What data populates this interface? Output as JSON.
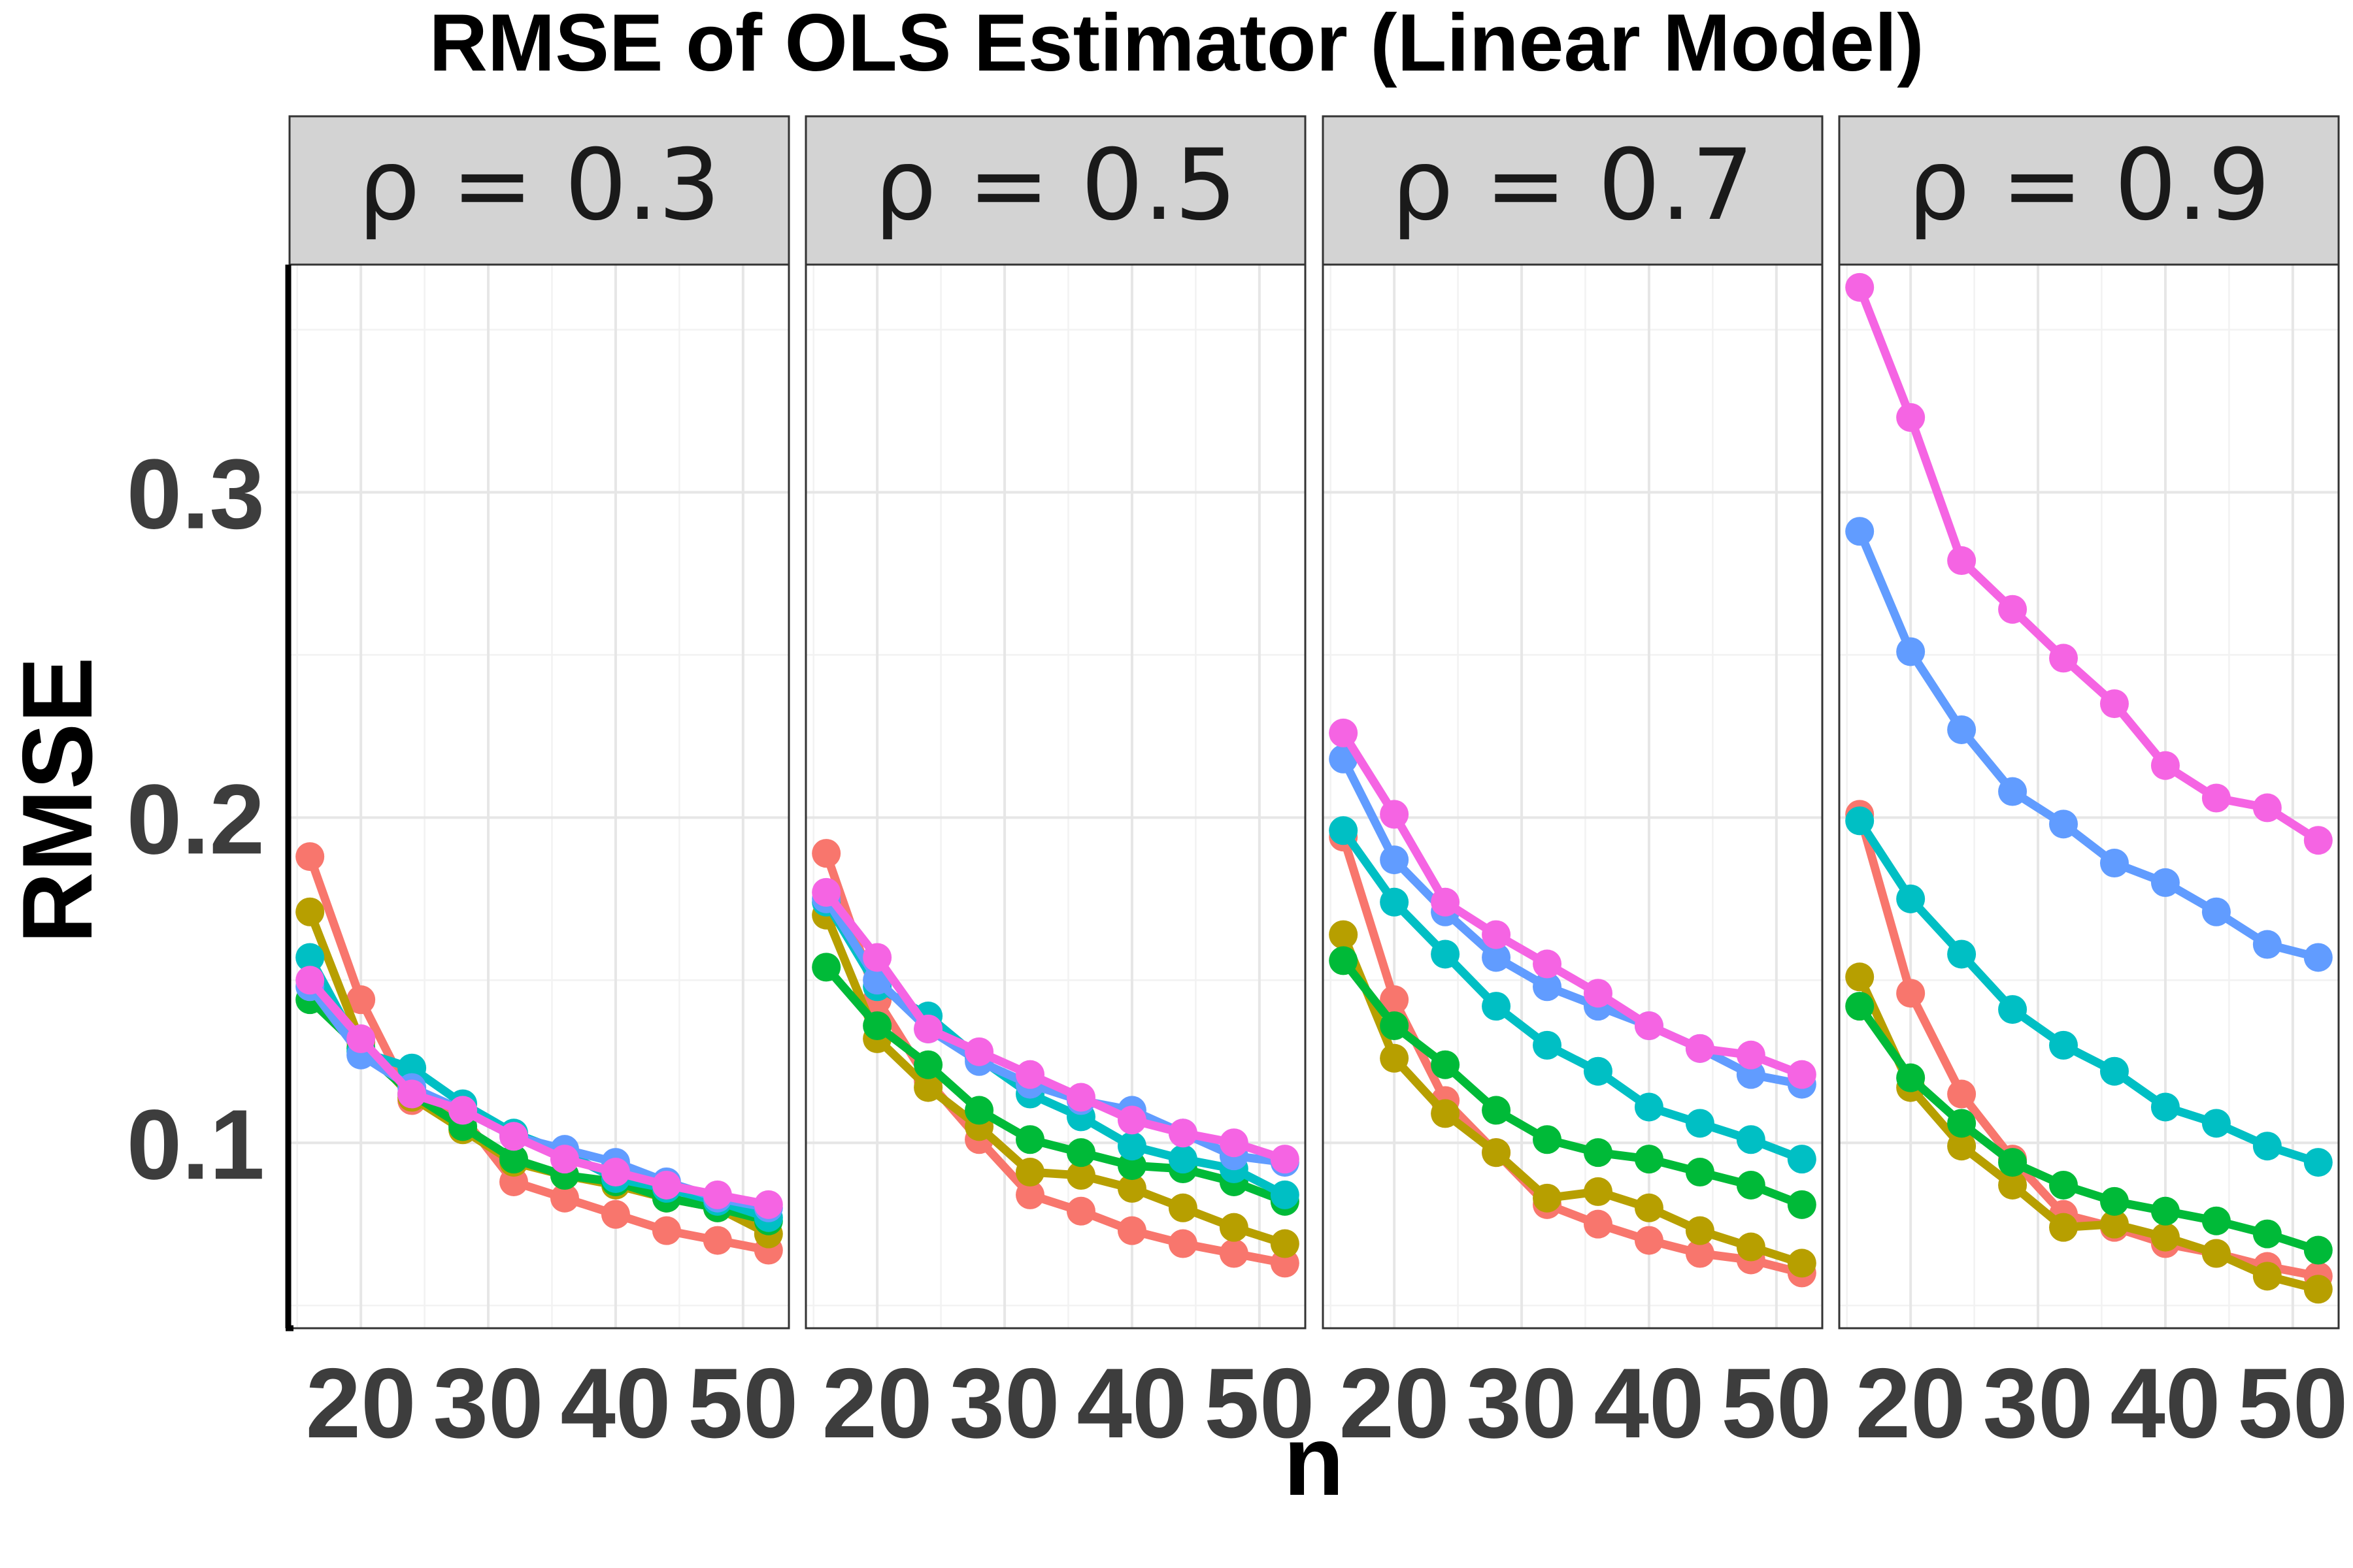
{
  "chart_data": {
    "type": "line",
    "title": "RMSE of OLS Estimator (Linear Model)",
    "xlabel": "n",
    "ylabel": "RMSE",
    "xlim": [
      14.4,
      53.6
    ],
    "ylim": [
      0.043,
      0.37
    ],
    "x_ticks": [
      20,
      30,
      40,
      50
    ],
    "y_ticks": [
      0.1,
      0.2,
      0.3
    ],
    "y_tick_labels": [
      "0.1",
      "0.2",
      "0.3"
    ],
    "x": [
      16,
      20,
      24,
      28,
      32,
      36,
      40,
      44,
      48,
      52
    ],
    "facet_prefix": "ρ = ",
    "facets": [
      {
        "label": "0.3",
        "series": [
          {
            "color": "#F8766D",
            "values": [
              0.188,
              0.144,
              0.113,
              0.108,
              0.088,
              0.083,
              0.078,
              0.073,
              0.07,
              0.067
            ]
          },
          {
            "color": "#B79F00",
            "values": [
              0.171,
              0.131,
              0.114,
              0.104,
              0.094,
              0.09,
              0.087,
              0.083,
              0.08,
              0.072
            ]
          },
          {
            "color": "#00BA38",
            "values": [
              0.144,
              0.129,
              0.115,
              0.105,
              0.095,
              0.09,
              0.088,
              0.083,
              0.08,
              0.076
            ]
          },
          {
            "color": "#00BFC4",
            "values": [
              0.157,
              0.128,
              0.123,
              0.112,
              0.103,
              0.097,
              0.089,
              0.086,
              0.082,
              0.077
            ]
          },
          {
            "color": "#619CFF",
            "values": [
              0.148,
              0.127,
              0.117,
              0.11,
              0.102,
              0.098,
              0.094,
              0.088,
              0.083,
              0.08
            ]
          },
          {
            "color": "#F564E3",
            "values": [
              0.15,
              0.132,
              0.115,
              0.11,
              0.102,
              0.095,
              0.091,
              0.087,
              0.084,
              0.081
            ]
          }
        ]
      },
      {
        "label": "0.5",
        "series": [
          {
            "color": "#F8766D",
            "values": [
              0.189,
              0.144,
              0.119,
              0.101,
              0.084,
              0.079,
              0.073,
              0.069,
              0.066,
              0.063
            ]
          },
          {
            "color": "#B79F00",
            "values": [
              0.17,
              0.132,
              0.117,
              0.105,
              0.091,
              0.09,
              0.086,
              0.08,
              0.074,
              0.069
            ]
          },
          {
            "color": "#00BA38",
            "values": [
              0.154,
              0.136,
              0.124,
              0.11,
              0.101,
              0.097,
              0.093,
              0.092,
              0.088,
              0.082
            ]
          },
          {
            "color": "#00BFC4",
            "values": [
              0.174,
              0.148,
              0.139,
              0.126,
              0.115,
              0.108,
              0.099,
              0.095,
              0.092,
              0.084
            ]
          },
          {
            "color": "#619CFF",
            "values": [
              0.175,
              0.15,
              0.135,
              0.125,
              0.118,
              0.113,
              0.11,
              0.103,
              0.096,
              0.094
            ]
          },
          {
            "color": "#F564E3",
            "values": [
              0.177,
              0.157,
              0.135,
              0.128,
              0.121,
              0.114,
              0.107,
              0.103,
              0.1,
              0.095
            ]
          }
        ]
      },
      {
        "label": "0.7",
        "series": [
          {
            "color": "#F8766D",
            "values": [
              0.194,
              0.144,
              0.113,
              0.097,
              0.081,
              0.075,
              0.07,
              0.066,
              0.064,
              0.06
            ]
          },
          {
            "color": "#B79F00",
            "values": [
              0.164,
              0.126,
              0.109,
              0.097,
              0.083,
              0.085,
              0.08,
              0.073,
              0.068,
              0.063
            ]
          },
          {
            "color": "#00BA38",
            "values": [
              0.156,
              0.136,
              0.124,
              0.11,
              0.101,
              0.097,
              0.095,
              0.091,
              0.087,
              0.081
            ]
          },
          {
            "color": "#00BFC4",
            "values": [
              0.196,
              0.174,
              0.158,
              0.142,
              0.13,
              0.122,
              0.111,
              0.106,
              0.101,
              0.095
            ]
          },
          {
            "color": "#619CFF",
            "values": [
              0.218,
              0.187,
              0.171,
              0.157,
              0.148,
              0.142,
              0.136,
              0.129,
              0.121,
              0.118
            ]
          },
          {
            "color": "#F564E3",
            "values": [
              0.226,
              0.201,
              0.174,
              0.164,
              0.155,
              0.146,
              0.136,
              0.129,
              0.127,
              0.121
            ]
          }
        ]
      },
      {
        "label": "0.9",
        "series": [
          {
            "color": "#F8766D",
            "values": [
              0.201,
              0.146,
              0.115,
              0.095,
              0.078,
              0.074,
              0.069,
              0.066,
              0.062,
              0.059
            ]
          },
          {
            "color": "#B79F00",
            "values": [
              0.151,
              0.117,
              0.099,
              0.087,
              0.074,
              0.075,
              0.071,
              0.066,
              0.059,
              0.055
            ]
          },
          {
            "color": "#00BA38",
            "values": [
              0.142,
              0.12,
              0.106,
              0.094,
              0.087,
              0.082,
              0.079,
              0.076,
              0.072,
              0.067
            ]
          },
          {
            "color": "#00BFC4",
            "values": [
              0.199,
              0.175,
              0.158,
              0.141,
              0.13,
              0.122,
              0.111,
              0.106,
              0.099,
              0.094
            ]
          },
          {
            "color": "#619CFF",
            "values": [
              0.288,
              0.251,
              0.227,
              0.208,
              0.198,
              0.186,
              0.18,
              0.171,
              0.161,
              0.157
            ]
          },
          {
            "color": "#F564E3",
            "values": [
              0.363,
              0.323,
              0.279,
              0.264,
              0.249,
              0.235,
              0.216,
              0.206,
              0.203,
              0.193
            ]
          }
        ]
      }
    ],
    "grid": true,
    "legend": "none"
  }
}
